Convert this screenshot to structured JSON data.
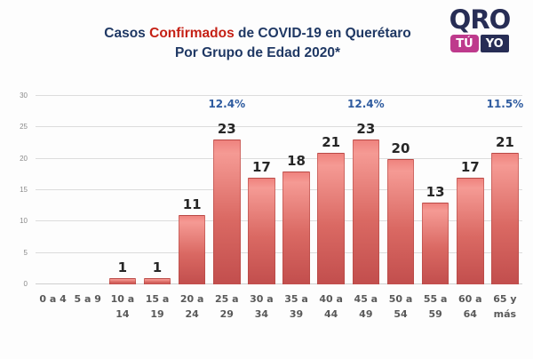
{
  "colors": {
    "title_navy": "#1F3864",
    "title_red": "#C52015",
    "annotation_blue": "#2E5B9F",
    "bar_top": "#F59A94",
    "bar_bottom": "#C24E4D",
    "gridline": "#DCDCDC",
    "logo_navy": "#272D55",
    "logo_pink": "#BE3A8C"
  },
  "header": {
    "title_prefix": "Casos ",
    "title_highlight": "Confirmados",
    "title_suffix": " de COVID-19 en Querétaro",
    "title_line2": "Por Grupo de Edad 2020*"
  },
  "logo": {
    "word": "QRO",
    "badge_left": "TÚ",
    "badge_right": "YO"
  },
  "chart_data": {
    "type": "bar",
    "title": "Casos Confirmados de COVID-19 en Querétaro Por Grupo de Edad 2020*",
    "xlabel": "",
    "ylabel": "",
    "ylim": [
      0,
      30
    ],
    "yticks": [
      0,
      5,
      10,
      15,
      20,
      25,
      30
    ],
    "grid": true,
    "legend": false,
    "categories": [
      "0 a 4",
      "5 a 9",
      "10 a\n14",
      "15 a\n19",
      "20 a\n24",
      "25 a\n29",
      "30 a\n34",
      "35 a\n39",
      "40 a\n44",
      "45 a\n49",
      "50 a\n54",
      "55 a\n59",
      "60 a\n64",
      "65 y\nmás"
    ],
    "values": [
      0,
      0,
      1,
      1,
      11,
      23,
      17,
      18,
      21,
      23,
      20,
      13,
      17,
      21
    ],
    "annotations": [
      {
        "index": 5,
        "category": "25 a 29",
        "text": "12.4%"
      },
      {
        "index": 9,
        "category": "45 a 49",
        "text": "12.4%"
      },
      {
        "index": 13,
        "category": "65 y más",
        "text": "11.5%"
      }
    ]
  }
}
